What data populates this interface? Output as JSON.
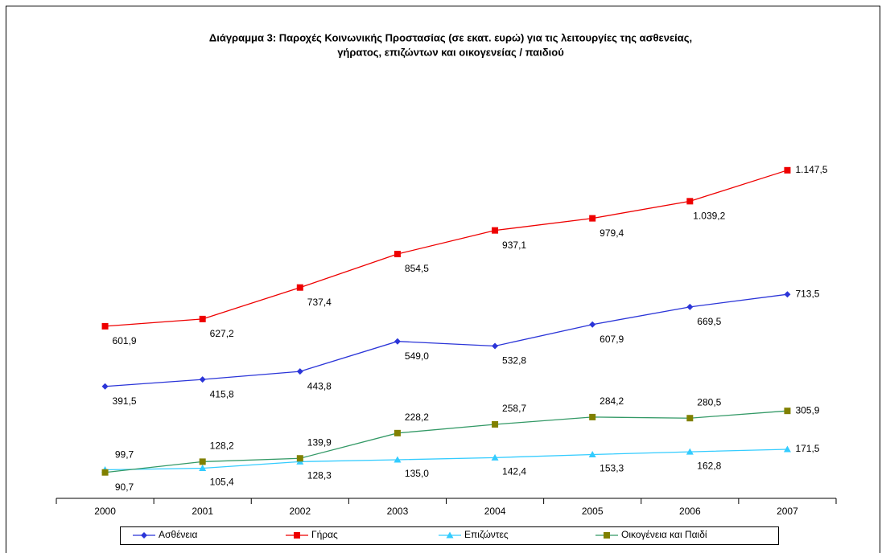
{
  "chart_data": {
    "type": "line",
    "title": [
      "Διάγραμμα 3: Παροχές Κοινωνικής Προστασίας (σε εκατ. ευρώ) για τις λειτουργίες της ασθενείας,",
      "γήρατος, επιζώντων και οικογενείας / παιδιού"
    ],
    "categories": [
      "2000",
      "2001",
      "2002",
      "2003",
      "2004",
      "2005",
      "2006",
      "2007"
    ],
    "ylim": [
      0,
      1400
    ],
    "series": [
      {
        "name": "Ασθένεια",
        "color": "#2b35d8",
        "marker": "diamond",
        "values": [
          391.5,
          415.8,
          443.8,
          549.0,
          532.8,
          607.9,
          669.5,
          713.5
        ],
        "value_labels": [
          "391,5",
          "415,8",
          "443,8",
          "549,0",
          "532,8",
          "607,9",
          "669,5",
          "713,5"
        ]
      },
      {
        "name": "Γήρας",
        "color": "#ee0000",
        "marker": "square",
        "values": [
          601.9,
          627.2,
          737.4,
          854.5,
          937.1,
          979.4,
          1039.2,
          1147.5
        ],
        "value_labels": [
          "601,9",
          "627,2",
          "737,4",
          "854,5",
          "937,1",
          "979,4",
          "1.039,2",
          "1.147,5"
        ]
      },
      {
        "name": "Επιζώντες",
        "color": "#33ccff",
        "marker": "triangle",
        "values": [
          99.7,
          105.4,
          128.3,
          135.0,
          142.4,
          153.3,
          162.8,
          171.5
        ],
        "value_labels": [
          "99,7",
          "105,4",
          "128,3",
          "135,0",
          "142,4",
          "153,3",
          "162,8",
          "171,5"
        ]
      },
      {
        "name": "Οικογένεια και Παιδί",
        "color": "#339966",
        "marker_color": "#808000",
        "marker": "square",
        "values": [
          90.7,
          128.2,
          139.9,
          228.2,
          258.7,
          284.2,
          280.5,
          305.9
        ],
        "value_labels": [
          "90,7",
          "128,2",
          "139,9",
          "228,2",
          "258,7",
          "284,2",
          "280,5",
          "305,9"
        ]
      }
    ]
  }
}
